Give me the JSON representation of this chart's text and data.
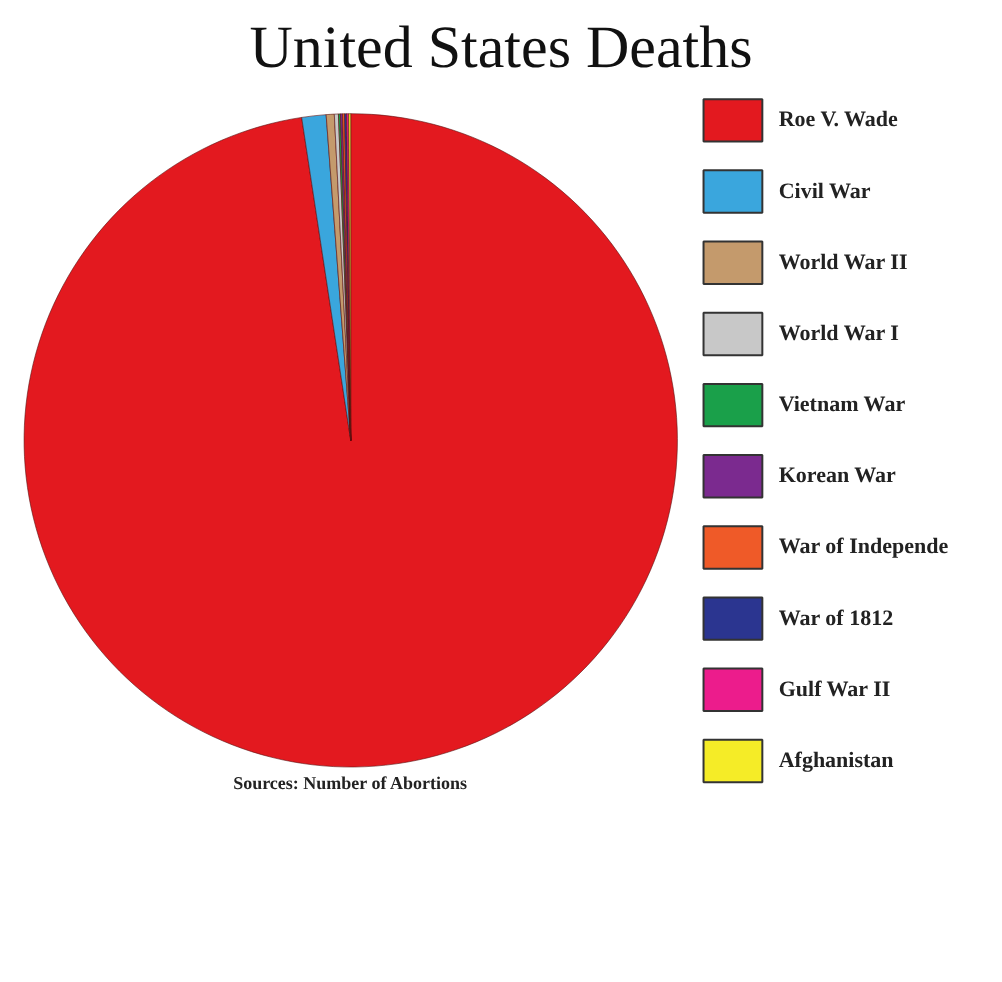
{
  "chart_data": {
    "type": "pie",
    "title": "United States Deaths",
    "categories": [
      "Roe V. Wade",
      "Civil War",
      "World War II",
      "World War I",
      "Vietnam War",
      "Korean War",
      "War of Independe",
      "War of 1812",
      "Gulf War II",
      "Afghanistan"
    ],
    "values": [
      97.6,
      1.2,
      0.4,
      0.2,
      0.1,
      0.1,
      0.1,
      0.1,
      0.1,
      0.1
    ],
    "colors": [
      "#e3191f",
      "#3aa6dd",
      "#c49a6c",
      "#c8c8c8",
      "#1aa04a",
      "#7b2a8f",
      "#ef5a28",
      "#2b3590",
      "#ec1c8c",
      "#f5ec27"
    ],
    "legend": "right",
    "annotations": [
      "Sources: Number of Abortions"
    ]
  }
}
